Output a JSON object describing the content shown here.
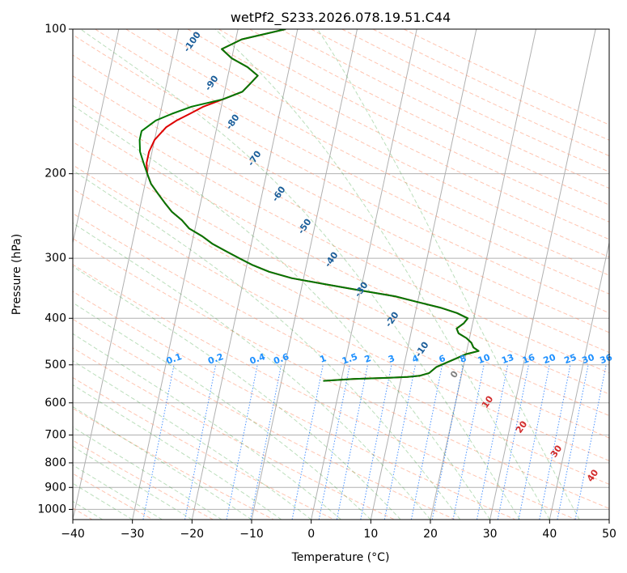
{
  "chart_data": {
    "type": "line",
    "diagram": "skew-T log-P",
    "title": "wetPf2_S233.2026.078.19.51.C44",
    "xlabel": "Temperature (°C)",
    "ylabel": "Pressure (hPa)",
    "xlim": [
      -40,
      50
    ],
    "ylim_hpa": [
      1050,
      100
    ],
    "x_ticks": [
      -40,
      -30,
      -20,
      -10,
      0,
      10,
      20,
      30,
      40,
      50
    ],
    "y_ticks": [
      100,
      200,
      300,
      400,
      500,
      600,
      700,
      800,
      900,
      1000
    ],
    "grid": true,
    "dry_adiabat_labels": [
      "-100",
      "-90",
      "-80",
      "-70",
      "-60",
      "-50",
      "-40",
      "-30",
      "-20",
      "-10",
      "0",
      "10",
      "20",
      "30",
      "40"
    ],
    "dry_adiabat_label_values": [
      -100,
      -90,
      -80,
      -70,
      -60,
      -50,
      -40,
      -30,
      -20,
      -10,
      0,
      10,
      20,
      30,
      40
    ],
    "mixing_ratio_labels": [
      "0.1",
      "0.2",
      "0.4",
      "0.6",
      "1",
      "1.5",
      "2",
      "3",
      "4",
      "6",
      "8",
      "10",
      "13",
      "16",
      "20",
      "25",
      "30",
      "36"
    ],
    "mixing_ratio_label_x_at_500hpa": [
      -23,
      -16,
      -9,
      -5,
      2,
      6.5,
      9.5,
      13.5,
      17.5,
      22,
      25.5,
      29,
      33,
      36.5,
      40,
      43.5,
      46.5,
      49.5
    ],
    "series": [
      {
        "name": "Temperature",
        "color": "#dd0000",
        "points": [
          [
            540,
            -3
          ],
          [
            535,
            2
          ],
          [
            532,
            8
          ],
          [
            530,
            11
          ],
          [
            527,
            13
          ],
          [
            520,
            14.5
          ],
          [
            505,
            15.5
          ],
          [
            495,
            17
          ],
          [
            485,
            18.5
          ],
          [
            475,
            20
          ],
          [
            468,
            22
          ],
          [
            460,
            21
          ],
          [
            450,
            20.5
          ],
          [
            440,
            19.5
          ],
          [
            430,
            18
          ],
          [
            420,
            17.5
          ],
          [
            410,
            18.5
          ],
          [
            400,
            19
          ],
          [
            390,
            17
          ],
          [
            380,
            14
          ],
          [
            370,
            10
          ],
          [
            360,
            6
          ],
          [
            350,
            0
          ],
          [
            340,
            -6
          ],
          [
            330,
            -12
          ],
          [
            320,
            -16
          ],
          [
            310,
            -19
          ],
          [
            300,
            -21.5
          ],
          [
            290,
            -24
          ],
          [
            280,
            -26.5
          ],
          [
            270,
            -28.5
          ],
          [
            260,
            -31
          ],
          [
            250,
            -32.5
          ],
          [
            240,
            -34.5
          ],
          [
            230,
            -36
          ],
          [
            220,
            -37.5
          ],
          [
            210,
            -39
          ],
          [
            200,
            -40
          ],
          [
            190,
            -40.5
          ],
          [
            180,
            -40.5
          ],
          [
            170,
            -40
          ],
          [
            160,
            -38.5
          ],
          [
            155,
            -37
          ],
          [
            150,
            -35
          ],
          [
            145,
            -33
          ],
          [
            140,
            -30
          ],
          [
            135,
            -27
          ],
          [
            130,
            -26
          ],
          [
            125,
            -25
          ],
          [
            120,
            -27
          ],
          [
            115,
            -30
          ],
          [
            110,
            -32
          ],
          [
            105,
            -29
          ],
          [
            100,
            -22
          ]
        ]
      },
      {
        "name": "Dewpoint",
        "color": "#007700",
        "points": [
          [
            540,
            -3
          ],
          [
            535,
            2
          ],
          [
            532,
            8
          ],
          [
            530,
            11
          ],
          [
            527,
            13
          ],
          [
            520,
            14.5
          ],
          [
            505,
            15.5
          ],
          [
            495,
            17
          ],
          [
            485,
            18.5
          ],
          [
            475,
            20
          ],
          [
            468,
            22
          ],
          [
            460,
            21
          ],
          [
            450,
            20.5
          ],
          [
            440,
            19.5
          ],
          [
            430,
            18
          ],
          [
            420,
            17.5
          ],
          [
            410,
            18.5
          ],
          [
            400,
            19
          ],
          [
            390,
            17
          ],
          [
            380,
            14
          ],
          [
            370,
            10
          ],
          [
            360,
            6
          ],
          [
            350,
            0
          ],
          [
            340,
            -6
          ],
          [
            330,
            -12
          ],
          [
            320,
            -16
          ],
          [
            310,
            -19
          ],
          [
            300,
            -21.5
          ],
          [
            290,
            -24
          ],
          [
            280,
            -26.5
          ],
          [
            270,
            -28.5
          ],
          [
            260,
            -31
          ],
          [
            250,
            -32.5
          ],
          [
            240,
            -34.5
          ],
          [
            230,
            -36
          ],
          [
            220,
            -37.5
          ],
          [
            210,
            -39
          ],
          [
            200,
            -40
          ],
          [
            190,
            -41
          ],
          [
            180,
            -42
          ],
          [
            170,
            -42.5
          ],
          [
            163,
            -42.5
          ],
          [
            155,
            -40.5
          ],
          [
            150,
            -38
          ],
          [
            145,
            -35
          ],
          [
            140,
            -30
          ],
          [
            135,
            -27
          ],
          [
            130,
            -26
          ],
          [
            125,
            -25
          ],
          [
            120,
            -27
          ],
          [
            115,
            -30
          ],
          [
            110,
            -32
          ],
          [
            105,
            -29
          ],
          [
            100,
            -22
          ]
        ]
      }
    ]
  }
}
